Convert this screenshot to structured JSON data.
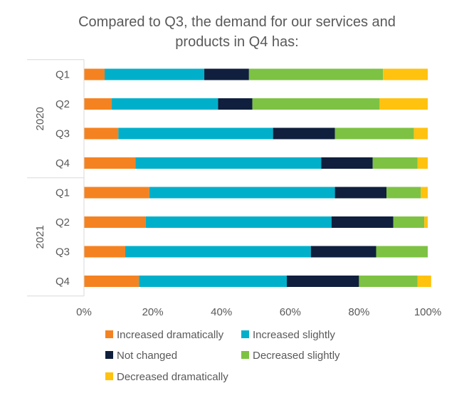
{
  "chart_data": {
    "type": "bar",
    "orientation": "horizontal",
    "stacked": "percent",
    "title": "Compared to Q3, the demand for our services and products in Q4 has:",
    "title_lines": [
      "Compared to Q3, the demand for our services and",
      "products in Q4 has:"
    ],
    "groups": [
      {
        "label": "2020",
        "categories": [
          "Q1",
          "Q2",
          "Q3",
          "Q4"
        ]
      },
      {
        "label": "2021",
        "categories": [
          "Q1",
          "Q2",
          "Q3",
          "Q4"
        ]
      }
    ],
    "x_ticks": [
      "0%",
      "20%",
      "40%",
      "60%",
      "80%",
      "100%"
    ],
    "xlim": [
      0,
      100
    ],
    "grid": false,
    "legend_position": "bottom",
    "series": [
      {
        "name": "Increased dramatically",
        "color": "#F58220",
        "values": [
          6,
          8,
          10,
          15,
          19,
          18,
          12,
          16
        ]
      },
      {
        "name": "Increased slightly",
        "color": "#00B0CA",
        "values": [
          29,
          31,
          45,
          54,
          54,
          54,
          54,
          43
        ]
      },
      {
        "name": "Not changed",
        "color": "#0F1F3D",
        "values": [
          13,
          10,
          18,
          15,
          15,
          18,
          19,
          21
        ]
      },
      {
        "name": "Decreased slightly",
        "color": "#7DC243",
        "values": [
          39,
          37,
          23,
          13,
          10,
          9,
          15,
          17
        ]
      },
      {
        "name": "Decreased dramatically",
        "color": "#FFC20E",
        "values": [
          13,
          14,
          4,
          3,
          2,
          1,
          0,
          4
        ]
      }
    ]
  }
}
